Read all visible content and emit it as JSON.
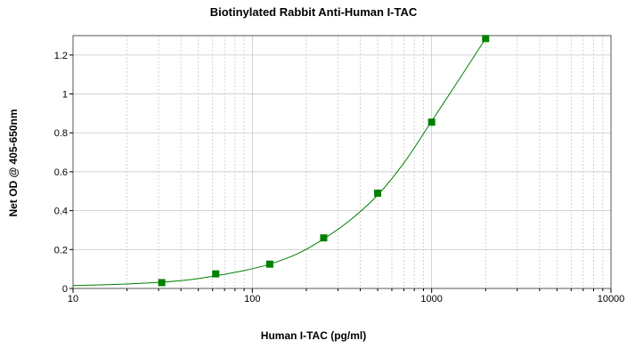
{
  "chart_data": {
    "type": "scatter",
    "title": "Biotinylated Rabbit Anti-Human I-TAC",
    "xlabel": "Human I-TAC (pg/ml)",
    "ylabel": "Net OD @ 405-650nm",
    "x_scale": "log",
    "xlim": [
      10,
      10000
    ],
    "ylim": [
      0,
      1.3
    ],
    "x_ticks": [
      10,
      100,
      1000,
      10000
    ],
    "x_tick_labels": [
      "10",
      "100",
      "1000",
      "10000"
    ],
    "y_ticks": [
      0,
      0.2,
      0.4,
      0.6,
      0.8,
      1.0,
      1.2
    ],
    "y_tick_labels": [
      "0",
      "0.2",
      "0.4",
      "0.6",
      "0.8",
      "1",
      "1.2"
    ],
    "grid": true,
    "series": [
      {
        "x": [
          31.25,
          62.5,
          125,
          250,
          500,
          1000,
          2000
        ],
        "y": [
          0.03,
          0.075,
          0.125,
          0.26,
          0.49,
          0.855,
          1.285
        ],
        "color": "#008000",
        "marker": "square"
      }
    ],
    "fit_curve": {
      "color": "#008000",
      "x": [
        10,
        15,
        20,
        31.25,
        45,
        62.5,
        90,
        125,
        180,
        250,
        350,
        500,
        700,
        1000,
        1400,
        2000
      ],
      "y": [
        0.015,
        0.019,
        0.023,
        0.032,
        0.045,
        0.065,
        0.092,
        0.125,
        0.18,
        0.255,
        0.35,
        0.48,
        0.645,
        0.86,
        1.065,
        1.285
      ]
    }
  }
}
